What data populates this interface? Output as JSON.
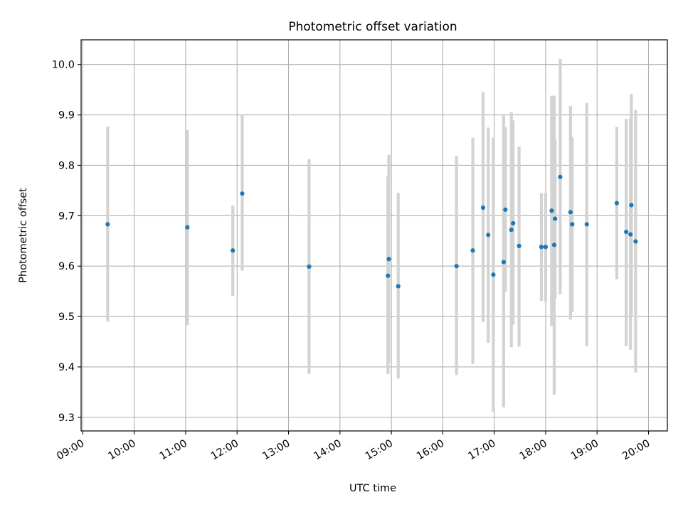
{
  "chart_data": {
    "type": "scatter",
    "title": "Photometric offset variation",
    "xlabel": "UTC time",
    "ylabel": "Photometric offset",
    "xlim": [
      "08:58",
      "20:22"
    ],
    "ylim": [
      9.273,
      10.049
    ],
    "x_ticks": [
      "09:00",
      "10:00",
      "11:00",
      "12:00",
      "13:00",
      "14:00",
      "15:00",
      "16:00",
      "17:00",
      "18:00",
      "19:00",
      "20:00"
    ],
    "y_ticks": [
      "9.3",
      "9.4",
      "9.5",
      "9.6",
      "9.7",
      "9.8",
      "9.9",
      "10.0"
    ],
    "grid": true,
    "colors": {
      "point": "#1f77b4",
      "errorbar": "#d3d3d3",
      "grid": "#b0b0b0"
    },
    "points": [
      {
        "x": "09:29",
        "y": 9.683,
        "ylo": 9.49,
        "yhi": 9.877
      },
      {
        "x": "11:02",
        "y": 9.677,
        "ylo": 9.483,
        "yhi": 9.87
      },
      {
        "x": "11:55",
        "y": 9.631,
        "ylo": 9.541,
        "yhi": 9.72
      },
      {
        "x": "12:06",
        "y": 9.744,
        "ylo": 9.591,
        "yhi": 9.9
      },
      {
        "x": "13:24",
        "y": 9.599,
        "ylo": 9.386,
        "yhi": 9.812
      },
      {
        "x": "14:56",
        "y": 9.581,
        "ylo": 9.386,
        "yhi": 9.779
      },
      {
        "x": "14:57",
        "y": 9.614,
        "ylo": 9.407,
        "yhi": 9.821
      },
      {
        "x": "15:08",
        "y": 9.56,
        "ylo": 9.377,
        "yhi": 9.745
      },
      {
        "x": "16:16",
        "y": 9.6,
        "ylo": 9.384,
        "yhi": 9.819
      },
      {
        "x": "16:35",
        "y": 9.631,
        "ylo": 9.406,
        "yhi": 9.855
      },
      {
        "x": "16:47",
        "y": 9.716,
        "ylo": 9.489,
        "yhi": 9.945
      },
      {
        "x": "16:53",
        "y": 9.662,
        "ylo": 9.448,
        "yhi": 9.875
      },
      {
        "x": "16:59",
        "y": 9.583,
        "ylo": 9.311,
        "yhi": 9.855
      },
      {
        "x": "17:11",
        "y": 9.608,
        "ylo": 9.32,
        "yhi": 9.899
      },
      {
        "x": "17:13",
        "y": 9.712,
        "ylo": 9.549,
        "yhi": 9.876
      },
      {
        "x": "17:20",
        "y": 9.672,
        "ylo": 9.439,
        "yhi": 9.905
      },
      {
        "x": "17:22",
        "y": 9.685,
        "ylo": 9.484,
        "yhi": 9.889
      },
      {
        "x": "17:29",
        "y": 9.64,
        "ylo": 9.44,
        "yhi": 9.837
      },
      {
        "x": "17:55",
        "y": 9.638,
        "ylo": 9.531,
        "yhi": 9.745
      },
      {
        "x": "18:00",
        "y": 9.638,
        "ylo": 9.53,
        "yhi": 9.745
      },
      {
        "x": "18:07",
        "y": 9.71,
        "ylo": 9.481,
        "yhi": 9.938
      },
      {
        "x": "18:10",
        "y": 9.642,
        "ylo": 9.345,
        "yhi": 9.938
      },
      {
        "x": "18:11",
        "y": 9.694,
        "ylo": 9.536,
        "yhi": 9.851
      },
      {
        "x": "18:17",
        "y": 9.777,
        "ylo": 9.544,
        "yhi": 10.011
      },
      {
        "x": "18:29",
        "y": 9.707,
        "ylo": 9.494,
        "yhi": 9.918
      },
      {
        "x": "18:31",
        "y": 9.683,
        "ylo": 9.509,
        "yhi": 9.856
      },
      {
        "x": "18:48",
        "y": 9.683,
        "ylo": 9.441,
        "yhi": 9.924
      },
      {
        "x": "19:23",
        "y": 9.725,
        "ylo": 9.574,
        "yhi": 9.876
      },
      {
        "x": "19:34",
        "y": 9.668,
        "ylo": 9.441,
        "yhi": 9.892
      },
      {
        "x": "19:39",
        "y": 9.663,
        "ylo": 9.434,
        "yhi": 9.893
      },
      {
        "x": "19:40",
        "y": 9.721,
        "ylo": 9.5,
        "yhi": 9.942
      },
      {
        "x": "19:45",
        "y": 9.649,
        "ylo": 9.389,
        "yhi": 9.91
      }
    ]
  }
}
